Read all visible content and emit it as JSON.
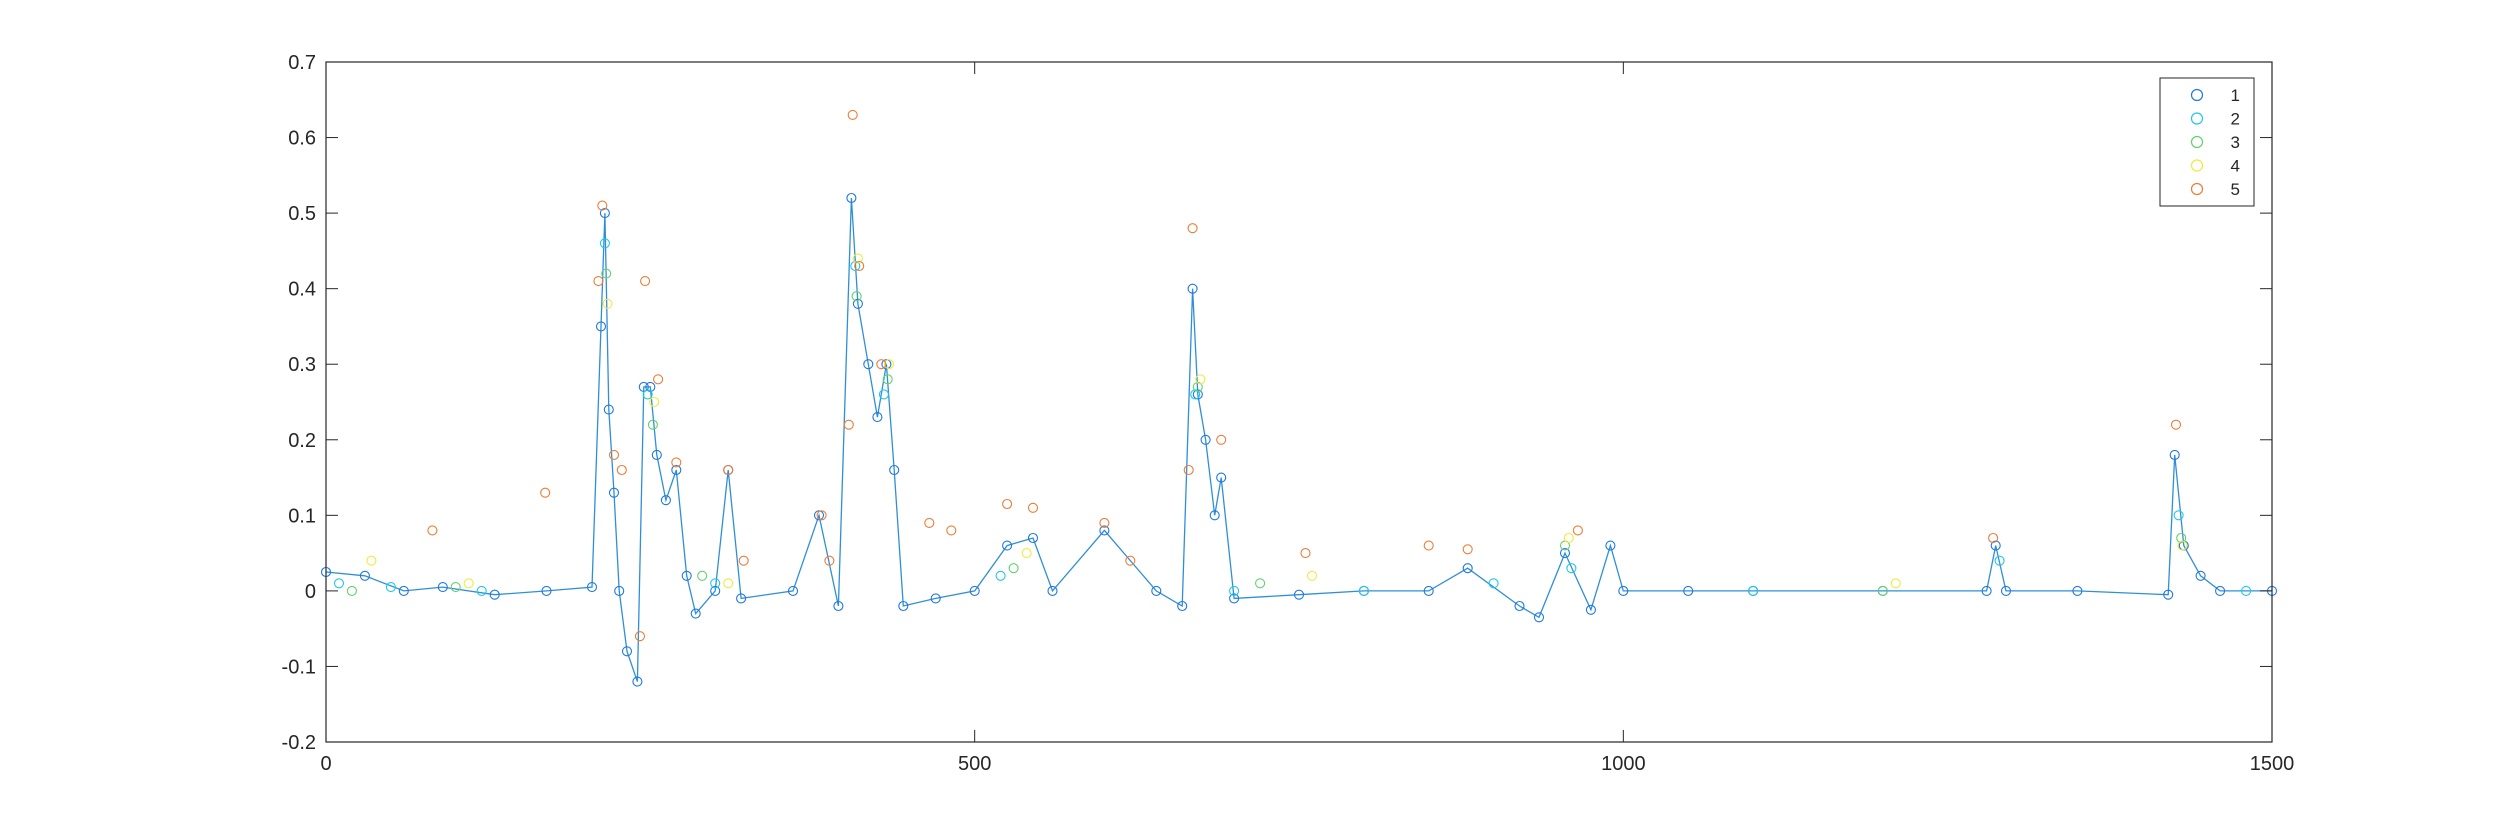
{
  "chart_data": {
    "type": "scatter",
    "title": "",
    "xlabel": "",
    "ylabel": "",
    "xlim": [
      0,
      1500
    ],
    "ylim": [
      -0.2,
      0.7
    ],
    "x_ticks": [
      "0",
      "500",
      "1000",
      "1500"
    ],
    "y_ticks": [
      "-0.2",
      "-0.1",
      "0",
      "0.1",
      "0.2",
      "0.3",
      "0.4",
      "0.5",
      "0.6",
      "0.7"
    ],
    "grid": false,
    "legend_position": "top-right",
    "connecting_line": {
      "series": "1",
      "color": "#2f8fd6"
    },
    "series": [
      {
        "name": "1",
        "color": "#1f77e0",
        "points": [
          [
            0,
            0.025
          ],
          [
            30,
            0.02
          ],
          [
            60,
            0.0
          ],
          [
            90,
            0.005
          ],
          [
            130,
            -0.005
          ],
          [
            170,
            0.0
          ],
          [
            205,
            0.005
          ],
          [
            212,
            0.35
          ],
          [
            215,
            0.5
          ],
          [
            218,
            0.24
          ],
          [
            222,
            0.13
          ],
          [
            226,
            0.0
          ],
          [
            232,
            -0.08
          ],
          [
            240,
            -0.12
          ],
          [
            245,
            0.27
          ],
          [
            250,
            0.27
          ],
          [
            255,
            0.18
          ],
          [
            262,
            0.12
          ],
          [
            270,
            0.16
          ],
          [
            278,
            0.02
          ],
          [
            285,
            -0.03
          ],
          [
            300,
            0.0
          ],
          [
            310,
            0.16
          ],
          [
            320,
            -0.01
          ],
          [
            360,
            0.0
          ],
          [
            380,
            0.1
          ],
          [
            395,
            -0.02
          ],
          [
            405,
            0.52
          ],
          [
            410,
            0.38
          ],
          [
            418,
            0.3
          ],
          [
            425,
            0.23
          ],
          [
            432,
            0.3
          ],
          [
            438,
            0.16
          ],
          [
            445,
            -0.02
          ],
          [
            470,
            -0.01
          ],
          [
            500,
            0.0
          ],
          [
            525,
            0.06
          ],
          [
            545,
            0.07
          ],
          [
            560,
            0.0
          ],
          [
            600,
            0.08
          ],
          [
            640,
            0.0
          ],
          [
            660,
            -0.02
          ],
          [
            668,
            0.4
          ],
          [
            672,
            0.26
          ],
          [
            678,
            0.2
          ],
          [
            685,
            0.1
          ],
          [
            690,
            0.15
          ],
          [
            700,
            -0.01
          ],
          [
            750,
            -0.005
          ],
          [
            800,
            0.0
          ],
          [
            850,
            0.0
          ],
          [
            880,
            0.03
          ],
          [
            920,
            -0.02
          ],
          [
            935,
            -0.035
          ],
          [
            955,
            0.05
          ],
          [
            975,
            -0.025
          ],
          [
            990,
            0.06
          ],
          [
            1000,
            0.0
          ],
          [
            1050,
            0.0
          ],
          [
            1100,
            0.0
          ],
          [
            1200,
            0.0
          ],
          [
            1280,
            0.0
          ],
          [
            1287,
            0.06
          ],
          [
            1295,
            0.0
          ],
          [
            1350,
            0.0
          ],
          [
            1420,
            -0.005
          ],
          [
            1425,
            0.18
          ],
          [
            1432,
            0.06
          ],
          [
            1445,
            0.02
          ],
          [
            1460,
            0.0
          ],
          [
            1500,
            0.0
          ]
        ]
      },
      {
        "name": "2",
        "color": "#1cc8e8",
        "points": [
          [
            10,
            0.01
          ],
          [
            50,
            0.005
          ],
          [
            120,
            0.0
          ],
          [
            215,
            0.46
          ],
          [
            248,
            0.26
          ],
          [
            300,
            0.01
          ],
          [
            408,
            0.43
          ],
          [
            430,
            0.26
          ],
          [
            520,
            0.02
          ],
          [
            670,
            0.26
          ],
          [
            700,
            0.0
          ],
          [
            800,
            0.0
          ],
          [
            900,
            0.01
          ],
          [
            960,
            0.03
          ],
          [
            1100,
            0.0
          ],
          [
            1290,
            0.04
          ],
          [
            1428,
            0.1
          ],
          [
            1480,
            0.0
          ]
        ]
      },
      {
        "name": "3",
        "color": "#5fd36a",
        "points": [
          [
            20,
            0.0
          ],
          [
            100,
            0.005
          ],
          [
            216,
            0.42
          ],
          [
            252,
            0.22
          ],
          [
            290,
            0.02
          ],
          [
            409,
            0.39
          ],
          [
            433,
            0.28
          ],
          [
            530,
            0.03
          ],
          [
            672,
            0.27
          ],
          [
            720,
            0.01
          ],
          [
            955,
            0.06
          ],
          [
            1200,
            0.0
          ],
          [
            1430,
            0.07
          ]
        ]
      },
      {
        "name": "4",
        "color": "#f0ea3c",
        "points": [
          [
            35,
            0.04
          ],
          [
            110,
            0.01
          ],
          [
            217,
            0.38
          ],
          [
            253,
            0.25
          ],
          [
            310,
            0.01
          ],
          [
            410,
            0.44
          ],
          [
            434,
            0.3
          ],
          [
            540,
            0.05
          ],
          [
            674,
            0.28
          ],
          [
            760,
            0.02
          ],
          [
            958,
            0.07
          ],
          [
            1210,
            0.01
          ],
          [
            1431,
            0.06
          ]
        ]
      },
      {
        "name": "5",
        "color": "#ee7b35",
        "points": [
          [
            82,
            0.08
          ],
          [
            169,
            0.13
          ],
          [
            210,
            0.41
          ],
          [
            213,
            0.51
          ],
          [
            222,
            0.18
          ],
          [
            228,
            0.16
          ],
          [
            242,
            -0.06
          ],
          [
            246,
            0.41
          ],
          [
            256,
            0.28
          ],
          [
            270,
            0.17
          ],
          [
            310,
            0.16
          ],
          [
            322,
            0.04
          ],
          [
            382,
            0.1
          ],
          [
            388,
            0.04
          ],
          [
            403,
            0.22
          ],
          [
            406,
            0.63
          ],
          [
            411,
            0.43
          ],
          [
            428,
            0.3
          ],
          [
            465,
            0.09
          ],
          [
            482,
            0.08
          ],
          [
            525,
            0.115
          ],
          [
            545,
            0.11
          ],
          [
            600,
            0.09
          ],
          [
            620,
            0.04
          ],
          [
            665,
            0.16
          ],
          [
            668,
            0.48
          ],
          [
            690,
            0.2
          ],
          [
            755,
            0.05
          ],
          [
            850,
            0.06
          ],
          [
            880,
            0.055
          ],
          [
            965,
            0.08
          ],
          [
            1285,
            0.07
          ],
          [
            1426,
            0.22
          ]
        ]
      }
    ]
  }
}
